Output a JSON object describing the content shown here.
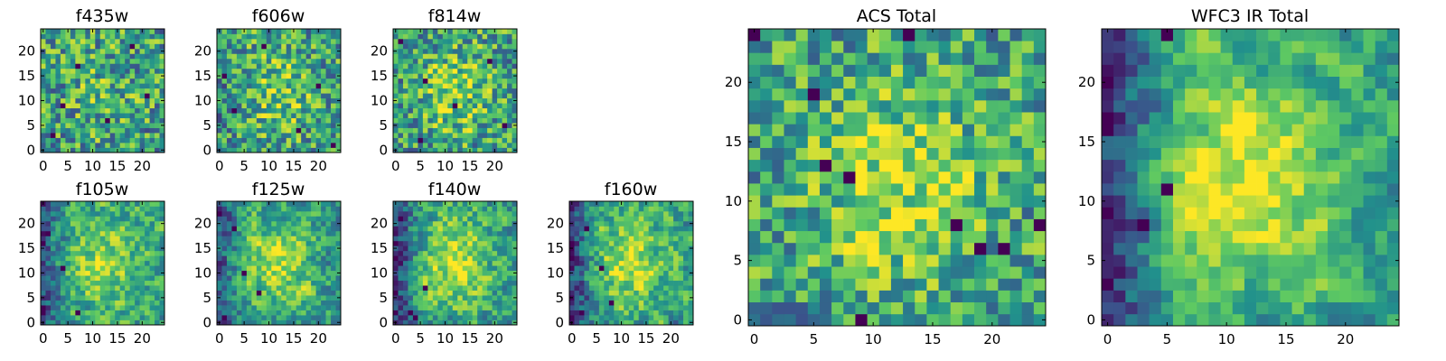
{
  "figure": {
    "colormap": "viridis",
    "colormap_stops": [
      "#440154",
      "#3b528b",
      "#21918c",
      "#5ec962",
      "#fde725"
    ],
    "frame_color": "#000000",
    "background": "#ffffff"
  },
  "chart_data": [
    {
      "type": "heatmap",
      "title": "f435w",
      "grid_size": [
        25,
        25
      ],
      "xlim": [
        -0.5,
        24.5
      ],
      "ylim": [
        -0.5,
        24.5
      ],
      "xticks": [
        0,
        5,
        10,
        15,
        20
      ],
      "yticks": [
        0,
        5,
        10,
        15,
        20
      ],
      "xtick_labels": [
        "0",
        "5",
        "10",
        "15",
        "20"
      ],
      "ytick_labels": [
        "0",
        "5",
        "10",
        "15",
        "20"
      ],
      "noise_seed": 11,
      "smoothing": 0.05,
      "center_boost": 0.1,
      "left_edge_dim": 0.0,
      "dark_cells": [
        [
          2,
          3
        ],
        [
          7,
          17
        ],
        [
          13,
          6
        ],
        [
          18,
          21
        ],
        [
          21,
          11
        ],
        [
          4,
          9
        ]
      ]
    },
    {
      "type": "heatmap",
      "title": "f606w",
      "grid_size": [
        25,
        25
      ],
      "xlim": [
        -0.5,
        24.5
      ],
      "ylim": [
        -0.5,
        24.5
      ],
      "xticks": [
        0,
        5,
        10,
        15,
        20
      ],
      "yticks": [
        0,
        5,
        10,
        15,
        20
      ],
      "xtick_labels": [
        "0",
        "5",
        "10",
        "15",
        "20"
      ],
      "ytick_labels": [
        "0",
        "5",
        "10",
        "15",
        "20"
      ],
      "noise_seed": 23,
      "smoothing": 0.1,
      "center_boost": 0.2,
      "left_edge_dim": 0.05,
      "dark_cells": [
        [
          1,
          15
        ],
        [
          3,
          8
        ],
        [
          9,
          21
        ],
        [
          16,
          4
        ],
        [
          20,
          13
        ],
        [
          23,
          1
        ]
      ]
    },
    {
      "type": "heatmap",
      "title": "f814w",
      "grid_size": [
        25,
        25
      ],
      "xlim": [
        -0.5,
        24.5
      ],
      "ylim": [
        -0.5,
        24.5
      ],
      "xticks": [
        0,
        5,
        10,
        15,
        20
      ],
      "yticks": [
        0,
        5,
        10,
        15,
        20
      ],
      "xtick_labels": [
        "0",
        "5",
        "10",
        "15",
        "20"
      ],
      "ytick_labels": [
        "0",
        "5",
        "10",
        "15",
        "20"
      ],
      "noise_seed": 37,
      "smoothing": 0.1,
      "center_boost": 0.25,
      "left_edge_dim": 0.05,
      "dark_cells": [
        [
          1,
          22
        ],
        [
          5,
          2
        ],
        [
          6,
          14
        ],
        [
          12,
          9
        ],
        [
          19,
          18
        ],
        [
          22,
          5
        ]
      ]
    },
    {
      "type": "heatmap",
      "title": "f105w",
      "grid_size": [
        25,
        25
      ],
      "xlim": [
        -0.5,
        24.5
      ],
      "ylim": [
        -0.5,
        24.5
      ],
      "xticks": [
        0,
        5,
        10,
        15,
        20
      ],
      "yticks": [
        0,
        5,
        10,
        15,
        20
      ],
      "xtick_labels": [
        "0",
        "5",
        "10",
        "15",
        "20"
      ],
      "ytick_labels": [
        "0",
        "5",
        "10",
        "15",
        "20"
      ],
      "noise_seed": 41,
      "smoothing": 0.45,
      "center_boost": 0.3,
      "left_edge_dim": 0.3,
      "dark_cells": [
        [
          0,
          16
        ],
        [
          1,
          18
        ],
        [
          4,
          11
        ],
        [
          7,
          2
        ],
        [
          0,
          3
        ]
      ]
    },
    {
      "type": "heatmap",
      "title": "f125w",
      "grid_size": [
        25,
        25
      ],
      "xlim": [
        -0.5,
        24.5
      ],
      "ylim": [
        -0.5,
        24.5
      ],
      "xticks": [
        0,
        5,
        10,
        15,
        20
      ],
      "yticks": [
        0,
        5,
        10,
        15,
        20
      ],
      "xtick_labels": [
        "0",
        "5",
        "10",
        "15",
        "20"
      ],
      "ytick_labels": [
        "0",
        "5",
        "10",
        "15",
        "20"
      ],
      "noise_seed": 53,
      "smoothing": 0.45,
      "center_boost": 0.3,
      "left_edge_dim": 0.3,
      "dark_cells": [
        [
          3,
          19
        ],
        [
          5,
          10
        ],
        [
          8,
          6
        ],
        [
          1,
          1
        ],
        [
          0,
          22
        ]
      ]
    },
    {
      "type": "heatmap",
      "title": "f140w",
      "grid_size": [
        25,
        25
      ],
      "xlim": [
        -0.5,
        24.5
      ],
      "ylim": [
        -0.5,
        24.5
      ],
      "xticks": [
        0,
        5,
        10,
        15,
        20
      ],
      "yticks": [
        0,
        5,
        10,
        15,
        20
      ],
      "xtick_labels": [
        "0",
        "5",
        "10",
        "15",
        "20"
      ],
      "ytick_labels": [
        "0",
        "5",
        "10",
        "15",
        "20"
      ],
      "noise_seed": 67,
      "smoothing": 0.45,
      "center_boost": 0.35,
      "left_edge_dim": 0.35,
      "dark_cells": [
        [
          1,
          21
        ],
        [
          0,
          16
        ],
        [
          3,
          2
        ],
        [
          4,
          1
        ],
        [
          6,
          7
        ]
      ]
    },
    {
      "type": "heatmap",
      "title": "f160w",
      "grid_size": [
        25,
        25
      ],
      "xlim": [
        -0.5,
        24.5
      ],
      "ylim": [
        -0.5,
        24.5
      ],
      "xticks": [
        0,
        5,
        10,
        15,
        20
      ],
      "yticks": [
        0,
        5,
        10,
        15,
        20
      ],
      "xtick_labels": [
        "0",
        "5",
        "10",
        "15",
        "20"
      ],
      "ytick_labels": [
        "0",
        "5",
        "10",
        "15",
        "20"
      ],
      "noise_seed": 79,
      "smoothing": 0.45,
      "center_boost": 0.35,
      "left_edge_dim": 0.35,
      "dark_cells": [
        [
          0,
          16
        ],
        [
          0,
          15
        ],
        [
          3,
          19
        ],
        [
          6,
          11
        ],
        [
          8,
          4
        ],
        [
          2,
          2
        ]
      ]
    },
    {
      "type": "heatmap",
      "title": "ACS Total",
      "grid_size": [
        25,
        25
      ],
      "xlim": [
        -0.5,
        24.5
      ],
      "ylim": [
        -0.5,
        24.5
      ],
      "xticks": [
        0,
        5,
        10,
        15,
        20
      ],
      "yticks": [
        0,
        5,
        10,
        15,
        20
      ],
      "xtick_labels": [
        "0",
        "5",
        "10",
        "15",
        "20"
      ],
      "ytick_labels": [
        "0",
        "5",
        "10",
        "15",
        "20"
      ],
      "noise_seed": 97,
      "smoothing": 0.2,
      "center_boost": 0.3,
      "left_edge_dim": 0.0,
      "dark_cells": [
        [
          0,
          24
        ],
        [
          13,
          24
        ],
        [
          6,
          13
        ],
        [
          8,
          12
        ],
        [
          17,
          8
        ],
        [
          19,
          6
        ],
        [
          21,
          6
        ],
        [
          9,
          0
        ],
        [
          24,
          8
        ],
        [
          5,
          19
        ]
      ]
    },
    {
      "type": "heatmap",
      "title": "WFC3 IR Total",
      "grid_size": [
        25,
        25
      ],
      "xlim": [
        -0.5,
        24.5
      ],
      "ylim": [
        -0.5,
        24.5
      ],
      "xticks": [
        0,
        5,
        10,
        15,
        20
      ],
      "yticks": [
        0,
        5,
        10,
        15,
        20
      ],
      "xtick_labels": [
        "0",
        "5",
        "10",
        "15",
        "20"
      ],
      "ytick_labels": [
        "0",
        "5",
        "10",
        "15",
        "20"
      ],
      "noise_seed": 101,
      "smoothing": 0.6,
      "center_boost": 0.45,
      "left_edge_dim": 0.4,
      "dark_cells": [
        [
          5,
          24
        ],
        [
          0,
          20
        ],
        [
          0,
          16
        ],
        [
          5,
          11
        ],
        [
          3,
          8
        ]
      ]
    }
  ]
}
